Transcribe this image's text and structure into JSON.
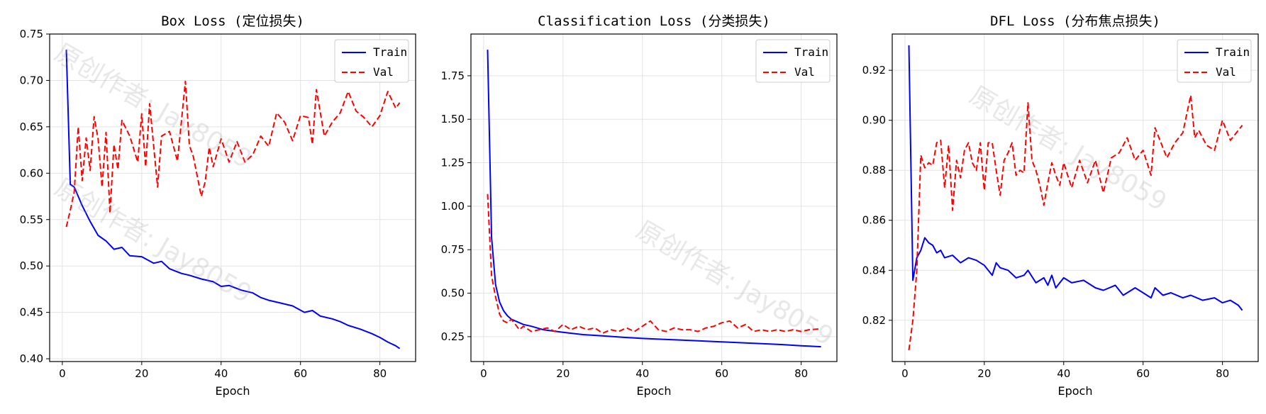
{
  "chart_data": [
    {
      "type": "line",
      "title": "Box Loss (定位损失)",
      "xlabel": "Epoch",
      "ylabel": "",
      "xlim": [
        -3.2,
        89
      ],
      "ylim": [
        0.397,
        0.75
      ],
      "xticks": [
        0,
        20,
        40,
        60,
        80
      ],
      "yticks": [
        0.4,
        0.45,
        0.5,
        0.55,
        0.6,
        0.65,
        0.7,
        0.75
      ],
      "tick_decimals": 2,
      "legend": "top-right",
      "grid": true,
      "series": [
        {
          "name": "Train",
          "color": "#0000ff",
          "dash": "solid",
          "x": [
            1,
            2,
            3,
            5,
            7,
            9,
            11,
            13,
            15,
            17,
            20,
            23,
            25,
            27,
            30,
            32,
            35,
            38,
            40,
            42,
            45,
            48,
            50,
            52,
            55,
            58,
            61,
            63,
            65,
            68,
            70,
            72,
            75,
            78,
            80,
            82,
            84,
            85
          ],
          "y": [
            0.733,
            0.588,
            0.585,
            0.565,
            0.548,
            0.533,
            0.527,
            0.518,
            0.52,
            0.511,
            0.51,
            0.503,
            0.505,
            0.497,
            0.492,
            0.49,
            0.486,
            0.483,
            0.478,
            0.479,
            0.474,
            0.471,
            0.466,
            0.463,
            0.46,
            0.457,
            0.45,
            0.452,
            0.446,
            0.443,
            0.44,
            0.436,
            0.432,
            0.427,
            0.423,
            0.418,
            0.414,
            0.411
          ]
        },
        {
          "name": "Val",
          "color": "#ff0000",
          "dash": "dashed",
          "x": [
            1,
            2,
            3,
            4,
            5,
            6,
            7,
            8,
            9,
            10,
            11,
            12,
            13,
            14,
            15,
            17,
            19,
            20,
            21,
            22,
            23,
            24,
            25,
            27,
            29,
            31,
            32,
            33,
            35,
            36,
            37,
            38,
            40,
            42,
            44,
            46,
            48,
            50,
            52,
            54,
            56,
            58,
            60,
            62,
            63,
            64,
            66,
            68,
            70,
            72,
            74,
            76,
            78,
            80,
            82,
            84,
            85
          ],
          "y": [
            0.542,
            0.56,
            0.58,
            0.65,
            0.592,
            0.638,
            0.603,
            0.661,
            0.637,
            0.585,
            0.644,
            0.557,
            0.631,
            0.604,
            0.657,
            0.64,
            0.612,
            0.664,
            0.607,
            0.675,
            0.63,
            0.585,
            0.64,
            0.645,
            0.613,
            0.699,
            0.63,
            0.618,
            0.575,
            0.591,
            0.628,
            0.607,
            0.637,
            0.612,
            0.634,
            0.612,
            0.62,
            0.64,
            0.629,
            0.665,
            0.655,
            0.635,
            0.662,
            0.66,
            0.631,
            0.69,
            0.64,
            0.655,
            0.665,
            0.688,
            0.667,
            0.66,
            0.65,
            0.662,
            0.688,
            0.67,
            0.676
          ]
        }
      ]
    },
    {
      "type": "line",
      "title": "Classification Loss (分类损失)",
      "xlabel": "Epoch",
      "ylabel": "",
      "xlim": [
        -3.2,
        89
      ],
      "ylim": [
        0.107,
        1.99
      ],
      "xticks": [
        0,
        20,
        40,
        60,
        80
      ],
      "yticks": [
        0.25,
        0.5,
        0.75,
        1.0,
        1.25,
        1.5,
        1.75
      ],
      "tick_decimals": 2,
      "legend": "top-right",
      "grid": true,
      "series": [
        {
          "name": "Train",
          "color": "#0000ff",
          "dash": "solid",
          "x": [
            1,
            2,
            3,
            4,
            5,
            6,
            7,
            8,
            10,
            12,
            15,
            20,
            25,
            30,
            35,
            40,
            45,
            50,
            55,
            60,
            65,
            70,
            75,
            80,
            85
          ],
          "y": [
            1.9,
            0.82,
            0.55,
            0.45,
            0.4,
            0.37,
            0.35,
            0.34,
            0.32,
            0.31,
            0.29,
            0.275,
            0.262,
            0.255,
            0.247,
            0.24,
            0.235,
            0.23,
            0.225,
            0.22,
            0.215,
            0.21,
            0.205,
            0.198,
            0.192
          ]
        },
        {
          "name": "Val",
          "color": "#ff0000",
          "dash": "dashed",
          "x": [
            1,
            2,
            3,
            4,
            5,
            6,
            7,
            8,
            9,
            10,
            12,
            14,
            16,
            18,
            20,
            22,
            24,
            26,
            28,
            30,
            32,
            34,
            36,
            38,
            40,
            42,
            44,
            46,
            48,
            50,
            52,
            54,
            56,
            58,
            60,
            62,
            64,
            66,
            68,
            70,
            72,
            74,
            76,
            78,
            80,
            82,
            85
          ],
          "y": [
            1.07,
            0.6,
            0.48,
            0.38,
            0.34,
            0.33,
            0.35,
            0.32,
            0.29,
            0.31,
            0.28,
            0.29,
            0.3,
            0.28,
            0.32,
            0.29,
            0.31,
            0.29,
            0.3,
            0.27,
            0.29,
            0.28,
            0.3,
            0.28,
            0.31,
            0.34,
            0.29,
            0.28,
            0.3,
            0.29,
            0.29,
            0.28,
            0.3,
            0.31,
            0.33,
            0.34,
            0.3,
            0.32,
            0.28,
            0.29,
            0.28,
            0.29,
            0.28,
            0.29,
            0.28,
            0.29,
            0.295
          ]
        }
      ]
    },
    {
      "type": "line",
      "title": "DFL Loss (分布焦点损失)",
      "xlabel": "Epoch",
      "ylabel": "",
      "xlim": [
        -3.2,
        89
      ],
      "ylim": [
        0.8035,
        0.9345
      ],
      "xticks": [
        0,
        20,
        40,
        60,
        80
      ],
      "yticks": [
        0.82,
        0.84,
        0.86,
        0.88,
        0.9,
        0.92
      ],
      "tick_decimals": 2,
      "legend": "top-right",
      "grid": true,
      "series": [
        {
          "name": "Train",
          "color": "#0000ff",
          "dash": "solid",
          "x": [
            1,
            2,
            3,
            4,
            5,
            6,
            7,
            8,
            9,
            10,
            12,
            14,
            16,
            18,
            20,
            22,
            23,
            24,
            26,
            28,
            30,
            31,
            33,
            35,
            36,
            37,
            38,
            40,
            42,
            45,
            48,
            50,
            53,
            55,
            58,
            60,
            62,
            63,
            65,
            67,
            70,
            72,
            75,
            78,
            80,
            82,
            84,
            85
          ],
          "y": [
            0.93,
            0.836,
            0.845,
            0.848,
            0.853,
            0.851,
            0.85,
            0.847,
            0.848,
            0.845,
            0.846,
            0.843,
            0.845,
            0.844,
            0.842,
            0.838,
            0.843,
            0.841,
            0.84,
            0.837,
            0.838,
            0.84,
            0.835,
            0.837,
            0.834,
            0.838,
            0.833,
            0.837,
            0.835,
            0.836,
            0.833,
            0.832,
            0.834,
            0.83,
            0.833,
            0.831,
            0.829,
            0.833,
            0.83,
            0.831,
            0.829,
            0.83,
            0.828,
            0.829,
            0.827,
            0.828,
            0.826,
            0.824
          ]
        },
        {
          "name": "Val",
          "color": "#ff0000",
          "dash": "dashed",
          "x": [
            1,
            2,
            3,
            4,
            5,
            6,
            7,
            8,
            9,
            10,
            11,
            12,
            13,
            14,
            15,
            16,
            17,
            18,
            19,
            20,
            21,
            22,
            23,
            24,
            25,
            26,
            27,
            28,
            29,
            30,
            31,
            32,
            33,
            34,
            35,
            36,
            37,
            38,
            39,
            40,
            41,
            42,
            44,
            46,
            48,
            50,
            52,
            54,
            56,
            58,
            60,
            62,
            63,
            64,
            66,
            68,
            70,
            72,
            73,
            74,
            76,
            78,
            80,
            82,
            84,
            85
          ],
          "y": [
            0.808,
            0.82,
            0.84,
            0.886,
            0.881,
            0.883,
            0.882,
            0.891,
            0.892,
            0.873,
            0.89,
            0.864,
            0.884,
            0.877,
            0.888,
            0.891,
            0.883,
            0.88,
            0.891,
            0.872,
            0.891,
            0.891,
            0.88,
            0.87,
            0.884,
            0.887,
            0.891,
            0.878,
            0.88,
            0.879,
            0.907,
            0.884,
            0.88,
            0.874,
            0.866,
            0.875,
            0.883,
            0.878,
            0.874,
            0.883,
            0.878,
            0.873,
            0.884,
            0.875,
            0.884,
            0.871,
            0.885,
            0.887,
            0.893,
            0.884,
            0.888,
            0.878,
            0.897,
            0.893,
            0.885,
            0.891,
            0.895,
            0.91,
            0.893,
            0.896,
            0.89,
            0.888,
            0.9,
            0.892,
            0.896,
            0.898
          ]
        }
      ]
    }
  ],
  "watermarks": [
    {
      "text": "原创作者: Jay8059",
      "panel": 0,
      "anchor": "upper"
    },
    {
      "text": "原创作者: Jay8059",
      "panel": 0,
      "anchor": "lower"
    },
    {
      "text": "原创作者: Jay8059",
      "panel": 1,
      "anchor": "center"
    },
    {
      "text": "原创作者: Jay8059",
      "panel": 2,
      "anchor": "upper"
    }
  ]
}
